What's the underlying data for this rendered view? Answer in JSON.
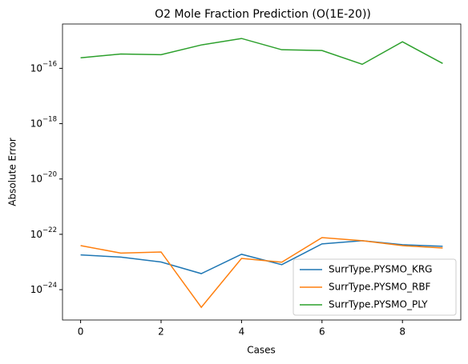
{
  "chart_data": {
    "type": "line",
    "title": "O2 Mole Fraction Prediction (O(1E-20))",
    "xlabel": "Cases",
    "ylabel": "Absolute Error",
    "x": [
      0,
      1,
      2,
      3,
      4,
      5,
      6,
      7,
      8,
      9
    ],
    "xlim": [
      -0.45,
      9.45
    ],
    "xticks": [
      0,
      2,
      4,
      6,
      8
    ],
    "ylim": [
      4e-15,
      8e-26
    ],
    "yscale": "log",
    "yticks": [
      {
        "value": 1e-16,
        "label": "10−16"
      },
      {
        "value": 1e-18,
        "label": "10−18"
      },
      {
        "value": 1e-20,
        "label": "10−20"
      },
      {
        "value": 1e-22,
        "label": "10−22"
      },
      {
        "value": 1e-24,
        "label": "10−24"
      }
    ],
    "legend": "lower right",
    "series": [
      {
        "name": "SurrType.PYSMO_KRG",
        "color": "#1f77b4",
        "values": [
          1.8e-23,
          1.5e-23,
          1e-23,
          3.8e-24,
          1.9e-23,
          8e-24,
          4.5e-23,
          5.9e-23,
          4.2e-23,
          3.7e-23
        ]
      },
      {
        "name": "SurrType.PYSMO_RBF",
        "color": "#ff7f0e",
        "values": [
          3.9e-23,
          2.1e-23,
          2.3e-23,
          2.3e-25,
          1.35e-23,
          9.8e-24,
          7.6e-23,
          5.9e-23,
          3.9e-23,
          3.2e-23
        ]
      },
      {
        "name": "SurrType.PYSMO_PLY",
        "color": "#2ca02c",
        "values": [
          2.4e-16,
          3.3e-16,
          3.1e-16,
          7e-16,
          1.2e-15,
          4.7e-16,
          4.4e-16,
          1.4e-16,
          9.1e-16,
          1.5e-16
        ]
      }
    ]
  }
}
